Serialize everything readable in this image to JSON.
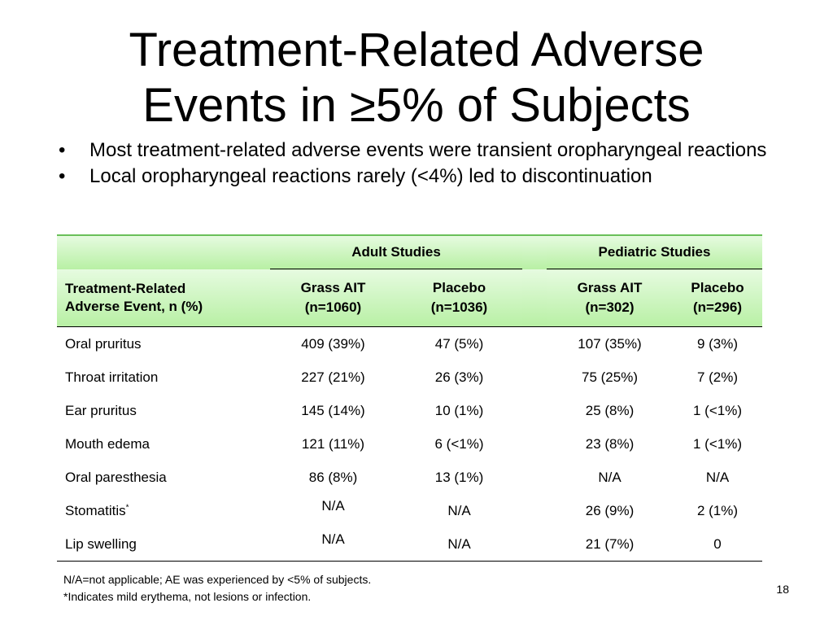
{
  "title_line1": "Treatment-Related Adverse",
  "title_line2": "Events in ≥5% of Subjects",
  "bullet_glyph": "•",
  "bullets": [
    "Most treatment-related adverse events were transient oropharyngeal reactions",
    "Local oropharyngeal reactions rarely (<4%) led to discontinuation"
  ],
  "table": {
    "group_headers": [
      "Adult Studies",
      "Pediatric Studies"
    ],
    "event_header_line1": "Treatment-Related",
    "event_header_line2": "Adverse Event, n (%)",
    "columns": [
      {
        "name": "Grass AIT",
        "n": "(n=1060)"
      },
      {
        "name": "Placebo",
        "n": "(n=1036)"
      },
      {
        "name": "Grass AIT",
        "n": "(n=302)"
      },
      {
        "name": "Placebo",
        "n": "(n=296)"
      }
    ],
    "rows": [
      {
        "event": "Oral pruritus",
        "sup": "",
        "values": [
          "409 (39%)",
          "47 (5%)",
          "107 (35%)",
          "9 (3%)"
        ]
      },
      {
        "event": "Throat irritation",
        "sup": "",
        "values": [
          "227 (21%)",
          "26 (3%)",
          "75 (25%)",
          "7 (2%)"
        ]
      },
      {
        "event": "Ear pruritus",
        "sup": "",
        "values": [
          "145 (14%)",
          "10 (1%)",
          "25 (8%)",
          "1 (<1%)"
        ]
      },
      {
        "event": "Mouth edema",
        "sup": "",
        "values": [
          "121 (11%)",
          "6 (<1%)",
          "23 (8%)",
          "1 (<1%)"
        ]
      },
      {
        "event": "Oral paresthesia",
        "sup": "",
        "values": [
          "86 (8%)",
          "13 (1%)",
          "N/A",
          "N/A"
        ]
      },
      {
        "event": "Stomatitis",
        "sup": "*",
        "values": [
          "N/A",
          "N/A",
          "26 (9%)",
          "2 (1%)"
        ]
      },
      {
        "event": "Lip swelling",
        "sup": "",
        "values": [
          "N/A",
          "N/A",
          "21 (7%)",
          "0"
        ]
      }
    ]
  },
  "footnotes": [
    "N/A=not applicable; AE was experienced by <5% of subjects.",
    "*Indicates mild erythema, not lesions or infection."
  ],
  "slide_number": "18",
  "colors": {
    "header_gradient_top": "#e6fbe0",
    "header_gradient_bottom": "#b8f0a4",
    "header_top_border": "#6abf59"
  }
}
